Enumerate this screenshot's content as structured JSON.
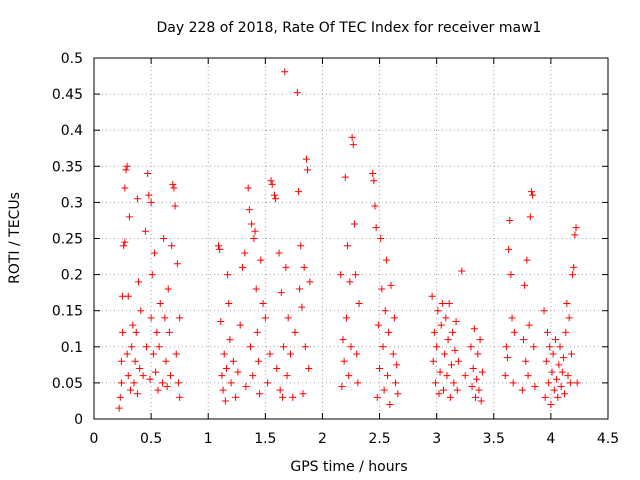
{
  "chart_data": {
    "type": "scatter",
    "title": "Day 228 of 2018, Rate Of TEC Index for receiver maw1",
    "xlabel": "GPS time / hours",
    "ylabel": "ROTI / TECUs",
    "xlim": [
      0,
      4.5
    ],
    "ylim": [
      0,
      0.5
    ],
    "grid": true,
    "marker": "plus",
    "color": "#ff0000",
    "x_ticks": [
      0,
      0.5,
      1,
      1.5,
      2,
      2.5,
      3,
      3.5,
      4,
      4.5
    ],
    "x_tick_labels": [
      "0",
      "0.5",
      "1",
      "1.5",
      "2",
      "2.5",
      "3",
      "3.5",
      "4",
      "4.5"
    ],
    "y_ticks": [
      0,
      0.05,
      0.1,
      0.15,
      0.2,
      0.25,
      0.3,
      0.35,
      0.4,
      0.45,
      0.5
    ],
    "y_tick_labels": [
      "0",
      "0.05",
      "0.1",
      "0.15",
      "0.2",
      "0.25",
      "0.3",
      "0.35",
      "0.4",
      "0.45",
      "0.5"
    ],
    "series": [
      {
        "name": "ROTI",
        "points": [
          [
            0.22,
            0.015
          ],
          [
            0.23,
            0.03
          ],
          [
            0.24,
            0.05
          ],
          [
            0.24,
            0.08
          ],
          [
            0.25,
            0.12
          ],
          [
            0.25,
            0.17
          ],
          [
            0.26,
            0.24
          ],
          [
            0.27,
            0.245
          ],
          [
            0.27,
            0.32
          ],
          [
            0.28,
            0.345
          ],
          [
            0.29,
            0.35
          ],
          [
            0.29,
            0.09
          ],
          [
            0.3,
            0.06
          ],
          [
            0.3,
            0.17
          ],
          [
            0.31,
            0.28
          ],
          [
            0.32,
            0.04
          ],
          [
            0.33,
            0.1
          ],
          [
            0.34,
            0.13
          ],
          [
            0.35,
            0.05
          ],
          [
            0.36,
            0.08
          ],
          [
            0.37,
            0.12
          ],
          [
            0.38,
            0.305
          ],
          [
            0.38,
            0.035
          ],
          [
            0.39,
            0.19
          ],
          [
            0.4,
            0.07
          ],
          [
            0.41,
            0.15
          ],
          [
            0.43,
            0.06
          ],
          [
            0.45,
            0.26
          ],
          [
            0.46,
            0.1
          ],
          [
            0.47,
            0.34
          ],
          [
            0.48,
            0.31
          ],
          [
            0.49,
            0.055
          ],
          [
            0.5,
            0.14
          ],
          [
            0.5,
            0.3
          ],
          [
            0.51,
            0.2
          ],
          [
            0.52,
            0.09
          ],
          [
            0.53,
            0.23
          ],
          [
            0.54,
            0.065
          ],
          [
            0.55,
            0.12
          ],
          [
            0.56,
            0.04
          ],
          [
            0.57,
            0.1
          ],
          [
            0.58,
            0.16
          ],
          [
            0.6,
            0.05
          ],
          [
            0.61,
            0.25
          ],
          [
            0.62,
            0.14
          ],
          [
            0.63,
            0.08
          ],
          [
            0.64,
            0.045
          ],
          [
            0.65,
            0.18
          ],
          [
            0.66,
            0.12
          ],
          [
            0.67,
            0.06
          ],
          [
            0.68,
            0.24
          ],
          [
            0.69,
            0.325
          ],
          [
            0.7,
            0.32
          ],
          [
            0.71,
            0.295
          ],
          [
            0.72,
            0.09
          ],
          [
            0.73,
            0.215
          ],
          [
            0.74,
            0.05
          ],
          [
            0.75,
            0.14
          ],
          [
            0.75,
            0.03
          ],
          [
            1.09,
            0.24
          ],
          [
            1.1,
            0.235
          ],
          [
            1.11,
            0.135
          ],
          [
            1.12,
            0.06
          ],
          [
            1.13,
            0.04
          ],
          [
            1.14,
            0.09
          ],
          [
            1.15,
            0.025
          ],
          [
            1.16,
            0.07
          ],
          [
            1.17,
            0.2
          ],
          [
            1.18,
            0.16
          ],
          [
            1.19,
            0.11
          ],
          [
            1.2,
            0.05
          ],
          [
            1.22,
            0.08
          ],
          [
            1.24,
            0.03
          ],
          [
            1.26,
            0.065
          ],
          [
            1.28,
            0.13
          ],
          [
            1.3,
            0.21
          ],
          [
            1.32,
            0.23
          ],
          [
            1.33,
            0.045
          ],
          [
            1.35,
            0.32
          ],
          [
            1.36,
            0.29
          ],
          [
            1.37,
            0.1
          ],
          [
            1.38,
            0.27
          ],
          [
            1.39,
            0.06
          ],
          [
            1.4,
            0.25
          ],
          [
            1.41,
            0.26
          ],
          [
            1.42,
            0.18
          ],
          [
            1.43,
            0.12
          ],
          [
            1.44,
            0.08
          ],
          [
            1.45,
            0.035
          ],
          [
            1.46,
            0.22
          ],
          [
            1.48,
            0.16
          ],
          [
            1.5,
            0.14
          ],
          [
            1.52,
            0.05
          ],
          [
            1.54,
            0.09
          ],
          [
            1.55,
            0.33
          ],
          [
            1.56,
            0.325
          ],
          [
            1.58,
            0.31
          ],
          [
            1.59,
            0.305
          ],
          [
            1.6,
            0.07
          ],
          [
            1.62,
            0.23
          ],
          [
            1.63,
            0.04
          ],
          [
            1.64,
            0.175
          ],
          [
            1.65,
            0.03
          ],
          [
            1.66,
            0.1
          ],
          [
            1.67,
            0.481
          ],
          [
            1.68,
            0.21
          ],
          [
            1.69,
            0.06
          ],
          [
            1.7,
            0.14
          ],
          [
            1.72,
            0.09
          ],
          [
            1.74,
            0.03
          ],
          [
            1.76,
            0.12
          ],
          [
            1.78,
            0.452
          ],
          [
            1.79,
            0.315
          ],
          [
            1.8,
            0.18
          ],
          [
            1.81,
            0.24
          ],
          [
            1.82,
            0.155
          ],
          [
            1.83,
            0.035
          ],
          [
            1.84,
            0.21
          ],
          [
            1.85,
            0.1
          ],
          [
            1.86,
            0.36
          ],
          [
            1.87,
            0.345
          ],
          [
            1.88,
            0.07
          ],
          [
            1.89,
            0.19
          ],
          [
            2.16,
            0.2
          ],
          [
            2.17,
            0.045
          ],
          [
            2.18,
            0.11
          ],
          [
            2.19,
            0.08
          ],
          [
            2.2,
            0.335
          ],
          [
            2.21,
            0.14
          ],
          [
            2.22,
            0.24
          ],
          [
            2.23,
            0.06
          ],
          [
            2.24,
            0.19
          ],
          [
            2.25,
            0.1
          ],
          [
            2.26,
            0.39
          ],
          [
            2.27,
            0.38
          ],
          [
            2.28,
            0.27
          ],
          [
            2.29,
            0.2
          ],
          [
            2.3,
            0.09
          ],
          [
            2.31,
            0.05
          ],
          [
            2.32,
            0.16
          ],
          [
            2.44,
            0.34
          ],
          [
            2.45,
            0.33
          ],
          [
            2.46,
            0.295
          ],
          [
            2.47,
            0.265
          ],
          [
            2.48,
            0.03
          ],
          [
            2.49,
            0.13
          ],
          [
            2.5,
            0.07
          ],
          [
            2.51,
            0.25
          ],
          [
            2.52,
            0.18
          ],
          [
            2.53,
            0.1
          ],
          [
            2.54,
            0.04
          ],
          [
            2.55,
            0.15
          ],
          [
            2.56,
            0.22
          ],
          [
            2.57,
            0.06
          ],
          [
            2.58,
            0.12
          ],
          [
            2.59,
            0.02
          ],
          [
            2.6,
            0.185
          ],
          [
            2.62,
            0.09
          ],
          [
            2.63,
            0.14
          ],
          [
            2.64,
            0.05
          ],
          [
            2.65,
            0.075
          ],
          [
            2.66,
            0.035
          ],
          [
            2.96,
            0.17
          ],
          [
            2.97,
            0.08
          ],
          [
            2.98,
            0.12
          ],
          [
            2.99,
            0.05
          ],
          [
            3.0,
            0.1
          ],
          [
            3.01,
            0.15
          ],
          [
            3.02,
            0.035
          ],
          [
            3.03,
            0.065
          ],
          [
            3.04,
            0.13
          ],
          [
            3.05,
            0.16
          ],
          [
            3.06,
            0.04
          ],
          [
            3.07,
            0.09
          ],
          [
            3.08,
            0.14
          ],
          [
            3.09,
            0.06
          ],
          [
            3.1,
            0.11
          ],
          [
            3.11,
            0.16
          ],
          [
            3.12,
            0.03
          ],
          [
            3.13,
            0.075
          ],
          [
            3.14,
            0.12
          ],
          [
            3.15,
            0.05
          ],
          [
            3.16,
            0.095
          ],
          [
            3.17,
            0.135
          ],
          [
            3.18,
            0.04
          ],
          [
            3.19,
            0.08
          ],
          [
            3.22,
            0.205
          ],
          [
            3.25,
            0.06
          ],
          [
            3.3,
            0.1
          ],
          [
            3.31,
            0.045
          ],
          [
            3.32,
            0.07
          ],
          [
            3.33,
            0.125
          ],
          [
            3.34,
            0.03
          ],
          [
            3.35,
            0.055
          ],
          [
            3.36,
            0.09
          ],
          [
            3.37,
            0.04
          ],
          [
            3.38,
            0.11
          ],
          [
            3.39,
            0.025
          ],
          [
            3.4,
            0.065
          ],
          [
            3.6,
            0.06
          ],
          [
            3.61,
            0.1
          ],
          [
            3.62,
            0.085
          ],
          [
            3.63,
            0.235
          ],
          [
            3.64,
            0.275
          ],
          [
            3.65,
            0.2
          ],
          [
            3.66,
            0.14
          ],
          [
            3.67,
            0.05
          ],
          [
            3.68,
            0.12
          ],
          [
            3.75,
            0.04
          ],
          [
            3.76,
            0.11
          ],
          [
            3.77,
            0.185
          ],
          [
            3.78,
            0.08
          ],
          [
            3.79,
            0.22
          ],
          [
            3.8,
            0.06
          ],
          [
            3.81,
            0.13
          ],
          [
            3.82,
            0.28
          ],
          [
            3.83,
            0.315
          ],
          [
            3.84,
            0.31
          ],
          [
            3.85,
            0.1
          ],
          [
            3.86,
            0.045
          ],
          [
            3.94,
            0.15
          ],
          [
            3.95,
            0.03
          ],
          [
            3.96,
            0.08
          ],
          [
            3.97,
            0.12
          ],
          [
            3.98,
            0.05
          ],
          [
            3.99,
            0.1
          ],
          [
            4.0,
            0.02
          ],
          [
            4.01,
            0.065
          ],
          [
            4.02,
            0.09
          ],
          [
            4.03,
            0.04
          ],
          [
            4.04,
            0.11
          ],
          [
            4.05,
            0.055
          ],
          [
            4.06,
            0.03
          ],
          [
            4.07,
            0.075
          ],
          [
            4.08,
            0.1
          ],
          [
            4.09,
            0.045
          ],
          [
            4.1,
            0.065
          ],
          [
            4.11,
            0.085
          ],
          [
            4.12,
            0.035
          ],
          [
            4.13,
            0.12
          ],
          [
            4.14,
            0.16
          ],
          [
            4.15,
            0.06
          ],
          [
            4.16,
            0.14
          ],
          [
            4.17,
            0.05
          ],
          [
            4.18,
            0.09
          ],
          [
            4.19,
            0.2
          ],
          [
            4.2,
            0.21
          ],
          [
            4.21,
            0.255
          ],
          [
            4.22,
            0.265
          ],
          [
            4.23,
            0.05
          ]
        ]
      }
    ]
  }
}
